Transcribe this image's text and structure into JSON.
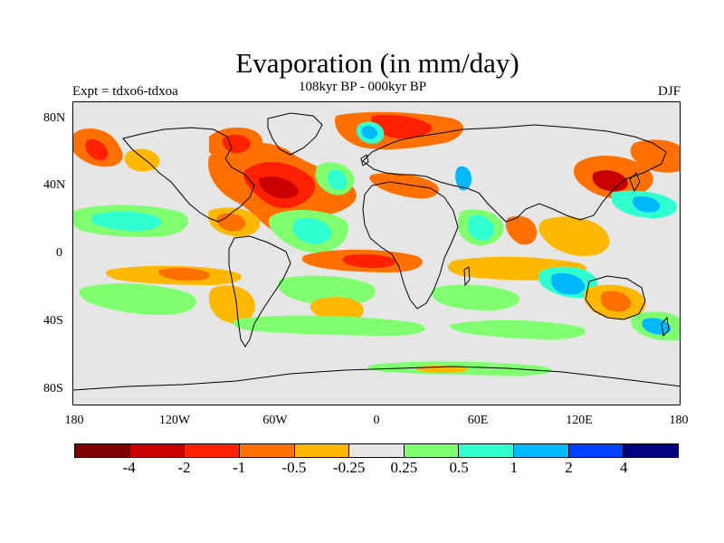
{
  "title": "Evaporation (in mm/day)",
  "subtitle": "108kyr BP - 000kyr BP",
  "left_label": "Expt = tdxo6-tdxoa",
  "right_label": "DJF",
  "lat_ticks": [
    "80N",
    "40N",
    "0",
    "40S",
    "80S"
  ],
  "lon_ticks": [
    "180",
    "120W",
    "60W",
    "0",
    "60E",
    "120E",
    "180"
  ],
  "colorbar": {
    "colors": [
      "#800000",
      "#c80000",
      "#ff2000",
      "#ff7000",
      "#ffb800",
      "#e6e6e6",
      "#80ff70",
      "#30ffd0",
      "#00b8ff",
      "#0040ff",
      "#000080"
    ],
    "labels": [
      "-4",
      "-2",
      "-1",
      "-0.5",
      "-0.25",
      "0.25",
      "0.5",
      "1",
      "2",
      "4"
    ]
  }
}
